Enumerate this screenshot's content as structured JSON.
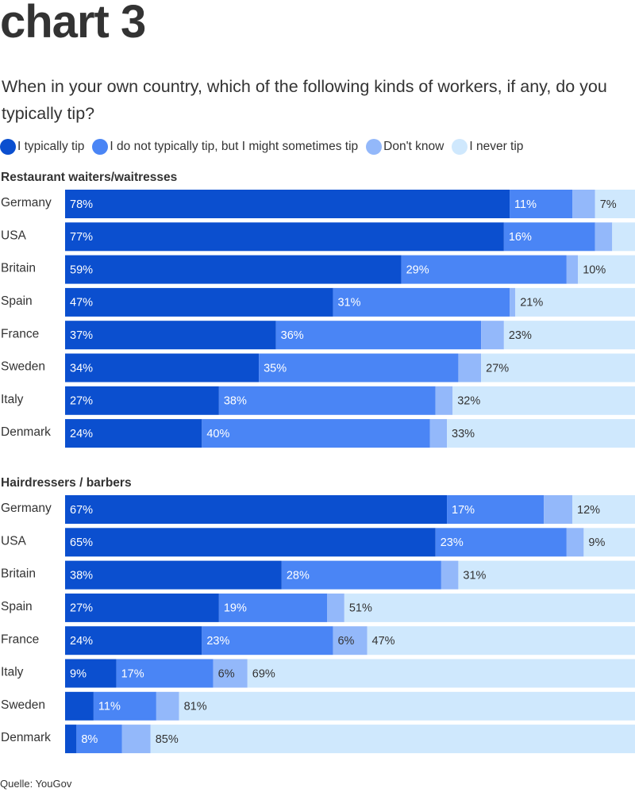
{
  "title": "chart 3",
  "subtitle": "When in your own country, which of the following kinds of workers, if any, do you typically tip?",
  "source": "Quelle: YouGov",
  "colors": {
    "typically": "#0b4fcf",
    "might": "#4a85f5",
    "dontknow": "#93b8fa",
    "never": "#cfe8fd",
    "label_dark": "#333333",
    "label_light": "#ffffff"
  },
  "legend": [
    {
      "key": "typically",
      "label": "I typically tip"
    },
    {
      "key": "might",
      "label": "I do not typically tip, but I might sometimes tip"
    },
    {
      "key": "dontknow",
      "label": "Don't know"
    },
    {
      "key": "never",
      "label": "I never tip"
    }
  ],
  "chart_data": [
    {
      "type": "bar",
      "stacked": true,
      "orientation": "horizontal",
      "title": "Restaurant waiters/waitresses",
      "categories": [
        "Germany",
        "USA",
        "Britain",
        "Spain",
        "France",
        "Sweden",
        "Italy",
        "Denmark"
      ],
      "series": [
        {
          "key": "typically",
          "name": "I typically tip",
          "values": [
            78,
            77,
            59,
            47,
            37,
            34,
            27,
            24
          ]
        },
        {
          "key": "might",
          "name": "I do not typically tip, but I might sometimes tip",
          "values": [
            11,
            16,
            29,
            31,
            36,
            35,
            38,
            40
          ]
        },
        {
          "key": "dontknow",
          "name": "Don't know",
          "values": [
            4,
            3,
            2,
            1,
            4,
            4,
            3,
            3
          ]
        },
        {
          "key": "never",
          "name": "I never tip",
          "values": [
            7,
            5,
            10,
            21,
            23,
            27,
            32,
            33
          ]
        }
      ],
      "labels": [
        [
          "78%",
          "11%",
          "",
          "7%"
        ],
        [
          "77%",
          "16%",
          "",
          ""
        ],
        [
          "59%",
          "29%",
          "",
          "10%"
        ],
        [
          "47%",
          "31%",
          "",
          "21%"
        ],
        [
          "37%",
          "36%",
          "",
          "23%"
        ],
        [
          "34%",
          "35%",
          "",
          "27%"
        ],
        [
          "27%",
          "38%",
          "",
          "32%"
        ],
        [
          "24%",
          "40%",
          "",
          "33%"
        ]
      ],
      "xlim": [
        0,
        100
      ]
    },
    {
      "type": "bar",
      "stacked": true,
      "orientation": "horizontal",
      "title": "Hairdressers / barbers",
      "categories": [
        "Germany",
        "USA",
        "Britain",
        "Spain",
        "France",
        "Italy",
        "Sweden",
        "Denmark"
      ],
      "series": [
        {
          "key": "typically",
          "name": "I typically tip",
          "values": [
            67,
            65,
            38,
            27,
            24,
            9,
            5,
            2
          ]
        },
        {
          "key": "might",
          "name": "I do not typically tip, but I might sometimes tip",
          "values": [
            17,
            23,
            28,
            19,
            23,
            17,
            11,
            8
          ]
        },
        {
          "key": "dontknow",
          "name": "Don't know",
          "values": [
            5,
            3,
            3,
            3,
            6,
            6,
            4,
            5
          ]
        },
        {
          "key": "never",
          "name": "I never tip",
          "values": [
            12,
            9,
            31,
            51,
            47,
            69,
            81,
            85
          ]
        }
      ],
      "labels": [
        [
          "67%",
          "17%",
          "",
          "12%"
        ],
        [
          "65%",
          "23%",
          "",
          "9%"
        ],
        [
          "38%",
          "28%",
          "",
          "31%"
        ],
        [
          "27%",
          "19%",
          "",
          "51%"
        ],
        [
          "24%",
          "23%",
          "6%",
          "47%"
        ],
        [
          "9%",
          "17%",
          "6%",
          "69%"
        ],
        [
          "",
          "11%",
          "",
          "81%"
        ],
        [
          "",
          "8%",
          "",
          "85%"
        ]
      ],
      "xlim": [
        0,
        100
      ]
    }
  ]
}
